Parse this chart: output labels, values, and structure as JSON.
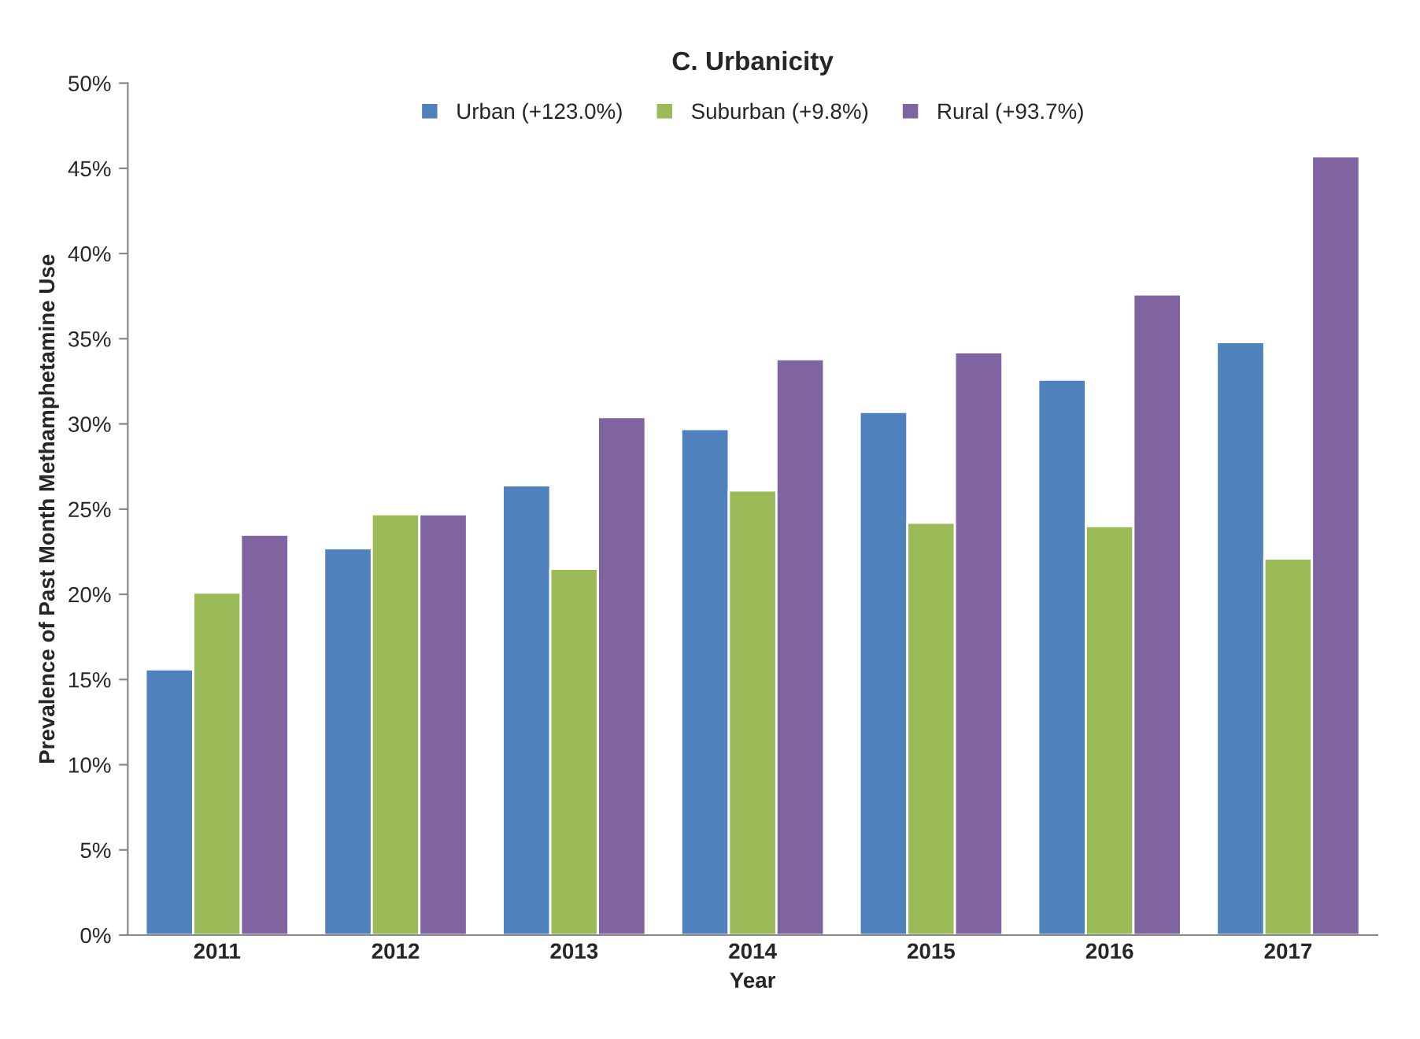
{
  "chart_data": {
    "type": "bar",
    "title": "C. Urbanicity",
    "xlabel": "Year",
    "ylabel": "Prevalence of Past Month Methamphetamine Use",
    "categories": [
      "2011",
      "2012",
      "2013",
      "2014",
      "2015",
      "2016",
      "2017"
    ],
    "series": [
      {
        "name": "Urban (+123.0%)",
        "color": "#4f81bd",
        "values": [
          15.6,
          22.7,
          26.4,
          29.7,
          30.7,
          32.6,
          34.8
        ]
      },
      {
        "name": "Suburban (+9.8%)",
        "color": "#9bbb59",
        "values": [
          20.1,
          24.7,
          21.5,
          26.1,
          24.2,
          24.0,
          22.1
        ]
      },
      {
        "name": "Rural (+93.7%)",
        "color": "#8064a2",
        "values": [
          23.5,
          24.7,
          30.4,
          33.8,
          34.2,
          37.6,
          45.7
        ]
      }
    ],
    "ylim": [
      0,
      50
    ],
    "yticks": [
      {
        "value": 0,
        "label": "0%"
      },
      {
        "value": 5,
        "label": "5%"
      },
      {
        "value": 10,
        "label": "10%"
      },
      {
        "value": 15,
        "label": "15%"
      },
      {
        "value": 20,
        "label": "20%"
      },
      {
        "value": 25,
        "label": "25%"
      },
      {
        "value": 30,
        "label": "30%"
      },
      {
        "value": 35,
        "label": "35%"
      },
      {
        "value": 40,
        "label": "40%"
      },
      {
        "value": 45,
        "label": "45%"
      },
      {
        "value": 50,
        "label": "50%"
      }
    ],
    "grid": false,
    "legend": "top"
  }
}
